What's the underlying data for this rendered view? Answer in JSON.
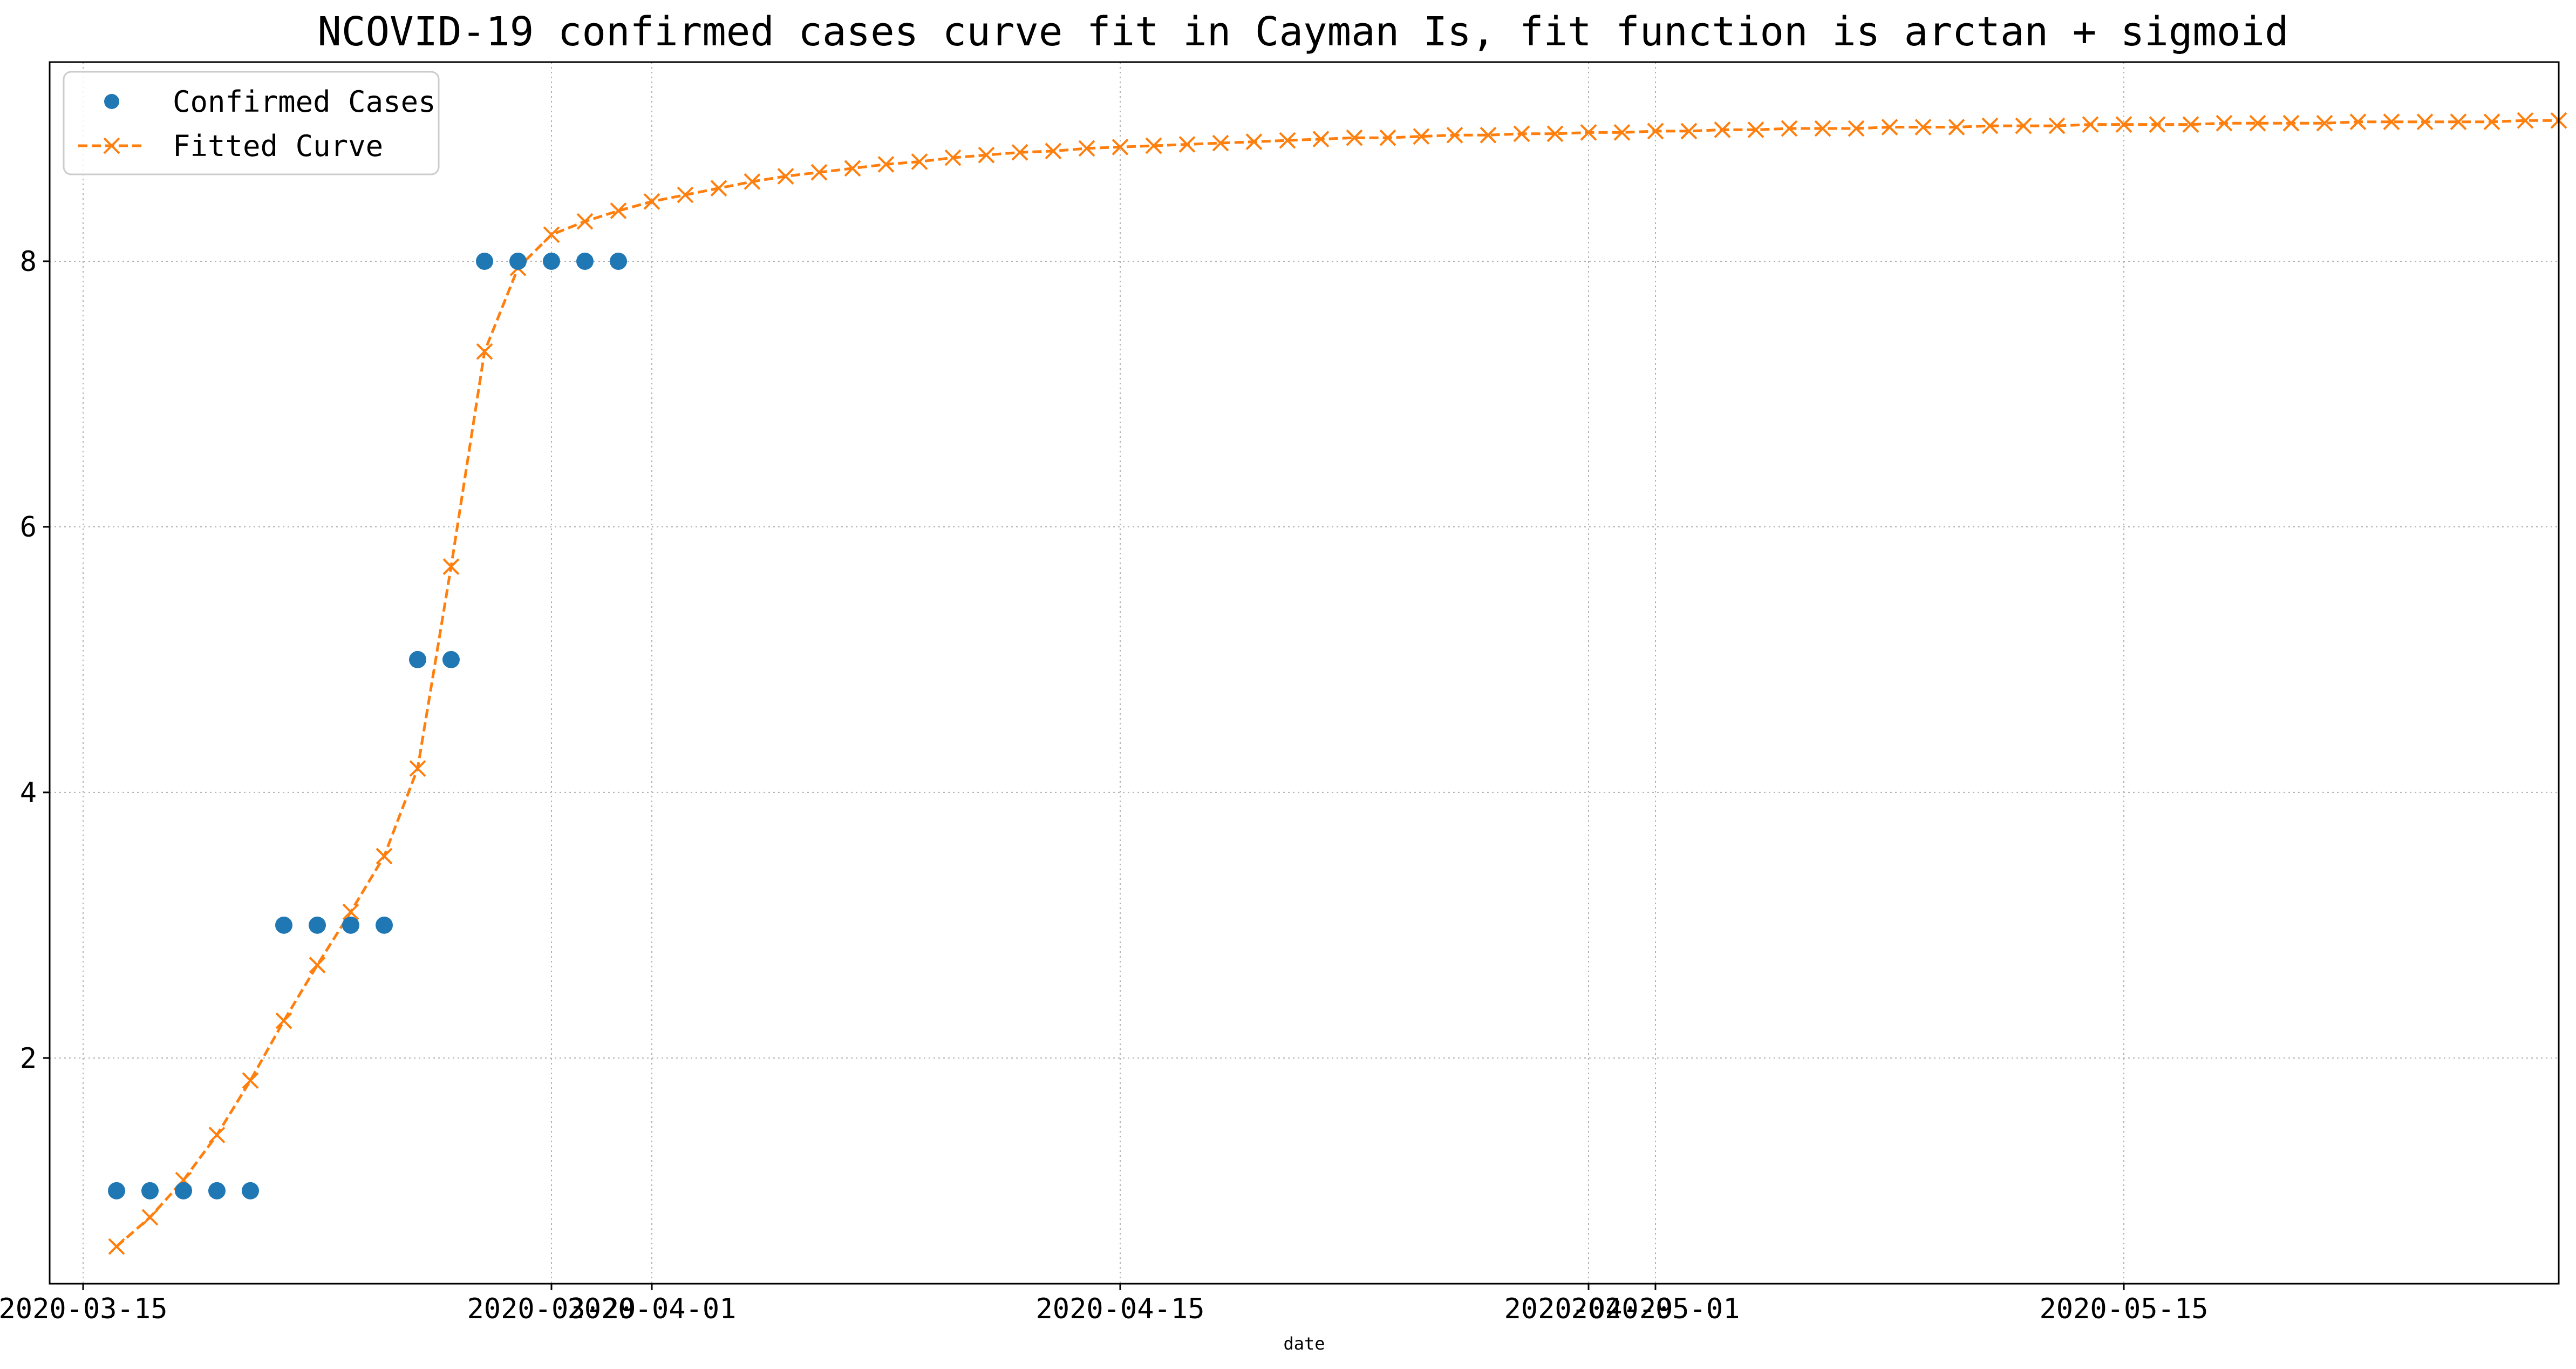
{
  "chart_data": {
    "type": "line",
    "title": "NCOVID-19 confirmed cases curve fit in Cayman Is, fit function is arctan + sigmoid",
    "xlabel": "date",
    "ylabel": "",
    "x_axis_type": "date",
    "xlim": [
      "2020-03-14",
      "2020-05-28"
    ],
    "ylim": [
      0.3,
      9.5
    ],
    "grid": true,
    "grid_style": "dotted",
    "legend_position": "upper-left",
    "xticks": [
      {
        "date": "2020-03-15",
        "label": "2020-03-15"
      },
      {
        "date": "2020-03-29",
        "label": "2020-03-29"
      },
      {
        "date": "2020-04-01",
        "label": "2020-04-01"
      },
      {
        "date": "2020-04-15",
        "label": "2020-04-15"
      },
      {
        "date": "2020-04-29",
        "label": "2020-04-29"
      },
      {
        "date": "2020-05-01",
        "label": "2020-05-01"
      },
      {
        "date": "2020-05-15",
        "label": "2020-05-15"
      }
    ],
    "yticks": [
      2,
      4,
      6,
      8
    ],
    "colors": {
      "confirmed": "#1f77b4",
      "fitted": "#ff7f0e",
      "grid": "#b0b0b0",
      "axis": "#000000"
    },
    "series": [
      {
        "name": "Confirmed Cases",
        "style": "markers",
        "marker": "circle",
        "color": "#1f77b4",
        "x": [
          "2020-03-16",
          "2020-03-17",
          "2020-03-18",
          "2020-03-19",
          "2020-03-20",
          "2020-03-21",
          "2020-03-22",
          "2020-03-23",
          "2020-03-24",
          "2020-03-25",
          "2020-03-26",
          "2020-03-27",
          "2020-03-28",
          "2020-03-29",
          "2020-03-30",
          "2020-03-31"
        ],
        "y": [
          1,
          1,
          1,
          1,
          1,
          3,
          3,
          3,
          3,
          5,
          5,
          8,
          8,
          8,
          8,
          8
        ]
      },
      {
        "name": "Fitted Curve",
        "style": "dashed-line-with-x-markers",
        "marker": "x",
        "color": "#ff7f0e",
        "x_start": "2020-03-16",
        "x_step_days": 1,
        "y": [
          0.58,
          0.8,
          1.08,
          1.42,
          1.83,
          2.28,
          2.7,
          3.1,
          3.52,
          4.18,
          5.7,
          7.32,
          7.95,
          8.2,
          8.3,
          8.38,
          8.45,
          8.5,
          8.55,
          8.6,
          8.64,
          8.67,
          8.7,
          8.73,
          8.75,
          8.78,
          8.8,
          8.82,
          8.83,
          8.85,
          8.86,
          8.87,
          8.88,
          8.89,
          8.9,
          8.91,
          8.92,
          8.93,
          8.93,
          8.94,
          8.95,
          8.95,
          8.96,
          8.96,
          8.97,
          8.97,
          8.98,
          8.98,
          8.99,
          8.99,
          9.0,
          9.0,
          9.0,
          9.01,
          9.01,
          9.01,
          9.02,
          9.02,
          9.02,
          9.03,
          9.03,
          9.03,
          9.03,
          9.04,
          9.04,
          9.04,
          9.04,
          9.05,
          9.05,
          9.05,
          9.05,
          9.05,
          9.06,
          9.06
        ]
      }
    ]
  }
}
